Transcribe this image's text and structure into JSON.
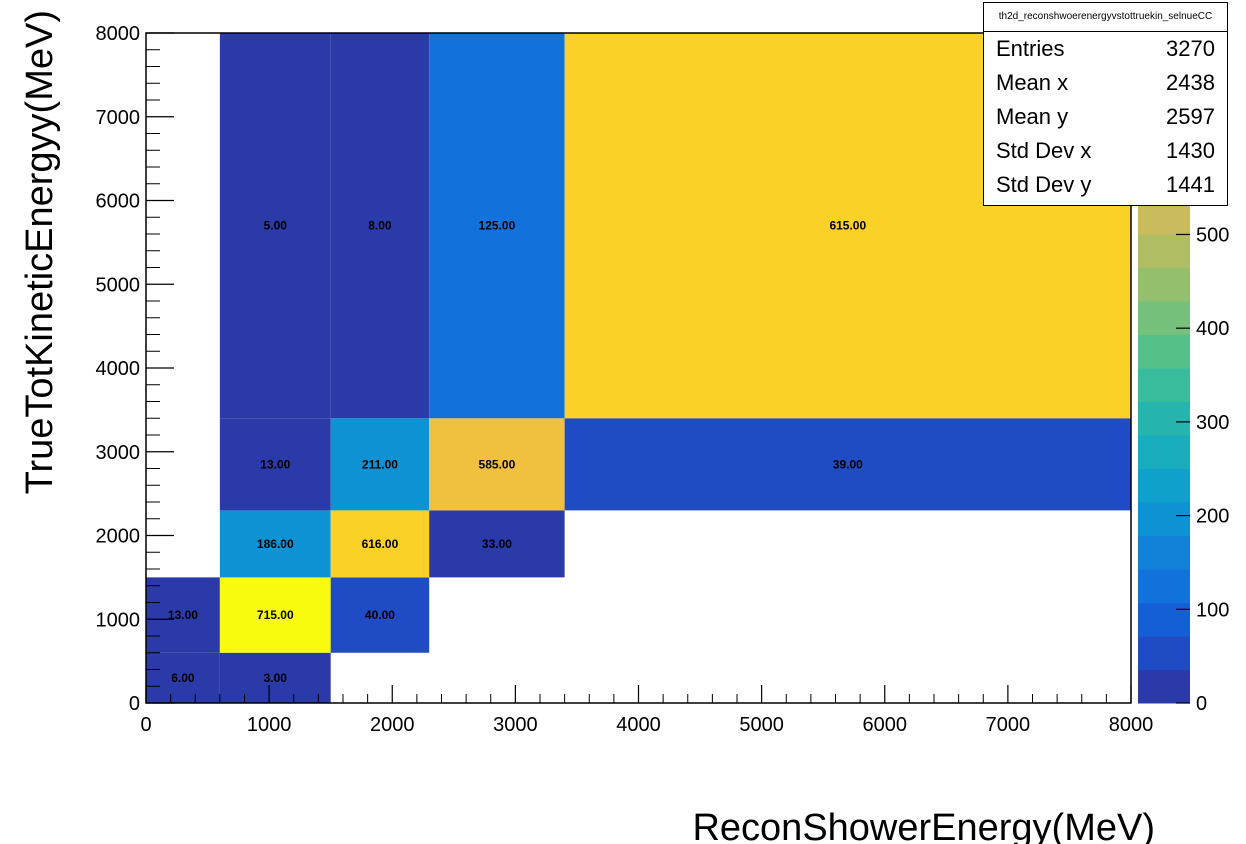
{
  "chart_data": {
    "type": "heatmap",
    "title": "",
    "xlabel": "ReconShowerEnergy(MeV)",
    "ylabel": "TrueTotKineticEnergyy(MeV)",
    "xlim": [
      0,
      8000
    ],
    "ylim": [
      0,
      8000
    ],
    "x_edges": [
      0,
      600,
      1500,
      2300,
      3400,
      8000
    ],
    "y_edges": [
      0,
      600,
      1500,
      2300,
      3400,
      8000
    ],
    "x_ticks": [
      0,
      1000,
      2000,
      3000,
      4000,
      5000,
      6000,
      7000,
      8000
    ],
    "y_ticks": [
      0,
      1000,
      2000,
      3000,
      4000,
      5000,
      6000,
      7000,
      8000
    ],
    "x_tick_labels": [
      "0",
      "1000",
      "2000",
      "3000",
      "4000",
      "5000",
      "6000",
      "7000",
      "8000"
    ],
    "y_tick_labels": [
      "0",
      "1000",
      "2000",
      "3000",
      "4000",
      "5000",
      "6000",
      "7000",
      "8000"
    ],
    "cells": [
      {
        "xbin": 0,
        "ybin": 0,
        "value": 6,
        "label": "6.00"
      },
      {
        "xbin": 1,
        "ybin": 0,
        "value": 3,
        "label": "3.00"
      },
      {
        "xbin": 0,
        "ybin": 1,
        "value": 13,
        "label": "13.00"
      },
      {
        "xbin": 1,
        "ybin": 1,
        "value": 715,
        "label": "715.00"
      },
      {
        "xbin": 2,
        "ybin": 1,
        "value": 40,
        "label": "40.00"
      },
      {
        "xbin": 1,
        "ybin": 2,
        "value": 186,
        "label": "186.00"
      },
      {
        "xbin": 2,
        "ybin": 2,
        "value": 616,
        "label": "616.00"
      },
      {
        "xbin": 3,
        "ybin": 2,
        "value": 33,
        "label": "33.00"
      },
      {
        "xbin": 1,
        "ybin": 3,
        "value": 13,
        "label": "13.00"
      },
      {
        "xbin": 2,
        "ybin": 3,
        "value": 211,
        "label": "211.00"
      },
      {
        "xbin": 3,
        "ybin": 3,
        "value": 585,
        "label": "585.00"
      },
      {
        "xbin": 4,
        "ybin": 3,
        "value": 39,
        "label": "39.00"
      },
      {
        "xbin": 1,
        "ybin": 4,
        "value": 5,
        "label": "5.00"
      },
      {
        "xbin": 2,
        "ybin": 4,
        "value": 8,
        "label": "8.00"
      },
      {
        "xbin": 3,
        "ybin": 4,
        "value": 125,
        "label": "125.00"
      },
      {
        "xbin": 4,
        "ybin": 4,
        "value": 615,
        "label": "615.00"
      }
    ],
    "z_min": 0,
    "z_max": 715,
    "colorbar_ticks": [
      0,
      100,
      200,
      300,
      400,
      500
    ],
    "colorbar_tick_labels": [
      "0",
      "100",
      "200",
      "300",
      "400",
      "500"
    ],
    "colors": {
      "palette": [
        "#2a3aa8",
        "#1f4bc4",
        "#155fd6",
        "#1272dc",
        "#1182d8",
        "#0d93d3",
        "#0fa1cb",
        "#19acbd",
        "#25b5ae",
        "#38bc9c",
        "#56c08a",
        "#75c17b",
        "#94c06e",
        "#b0bd64",
        "#c9ba5c",
        "#dcb855",
        "#f0c03e",
        "#fbd128",
        "#fbe61a",
        "#f9fb0e"
      ]
    },
    "stats": {
      "title": "th2d_reconshwoerenergyvstottruekin_selnueCC",
      "rows": [
        {
          "label": "Entries",
          "value": "3270"
        },
        {
          "label": "Mean x",
          "value": "2438"
        },
        {
          "label": "Mean y",
          "value": "2597"
        },
        {
          "label": "Std Dev x",
          "value": "1430"
        },
        {
          "label": "Std Dev y",
          "value": "1441"
        }
      ]
    }
  }
}
